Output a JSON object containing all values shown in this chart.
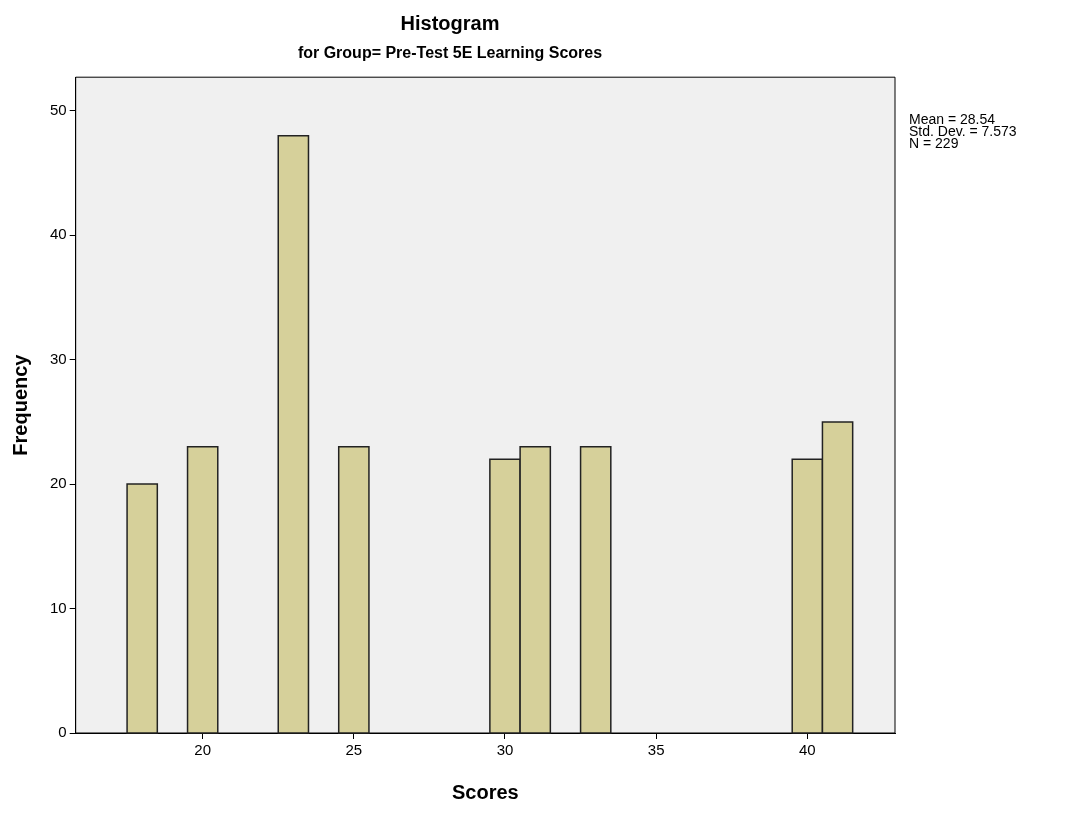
{
  "chart_data": {
    "type": "histogram",
    "title": "Histogram",
    "subtitle": "for Group= Pre-Test 5E Learning Scores",
    "xlabel": "Scores",
    "ylabel": "Frequency",
    "bins": [
      17.5,
      18.5,
      19.5,
      20.5,
      21.5,
      22.5,
      23.5,
      24.5,
      25.5,
      26.5,
      27.5,
      28.5,
      29.5,
      30.5,
      31.5,
      32.5,
      33.5,
      34.5,
      35.5,
      36.5,
      37.5,
      38.5,
      39.5,
      40.5,
      41.5
    ],
    "values": [
      20,
      0,
      23,
      0,
      0,
      48,
      0,
      23,
      0,
      0,
      0,
      0,
      22,
      23,
      0,
      23,
      0,
      0,
      0,
      0,
      0,
      0,
      22,
      25
    ],
    "color": "#d6d09a",
    "xlim": [
      15.8,
      42.9
    ],
    "xticks": [
      20,
      25,
      30,
      35,
      40
    ],
    "ylim": [
      0,
      52.7
    ],
    "yticks": [
      0,
      10,
      20,
      30,
      40,
      50
    ],
    "grid": false,
    "legend": false,
    "annotations": [
      "Mean = 28.54",
      "Std. Dev. = 7.573",
      "N = 229"
    ]
  }
}
